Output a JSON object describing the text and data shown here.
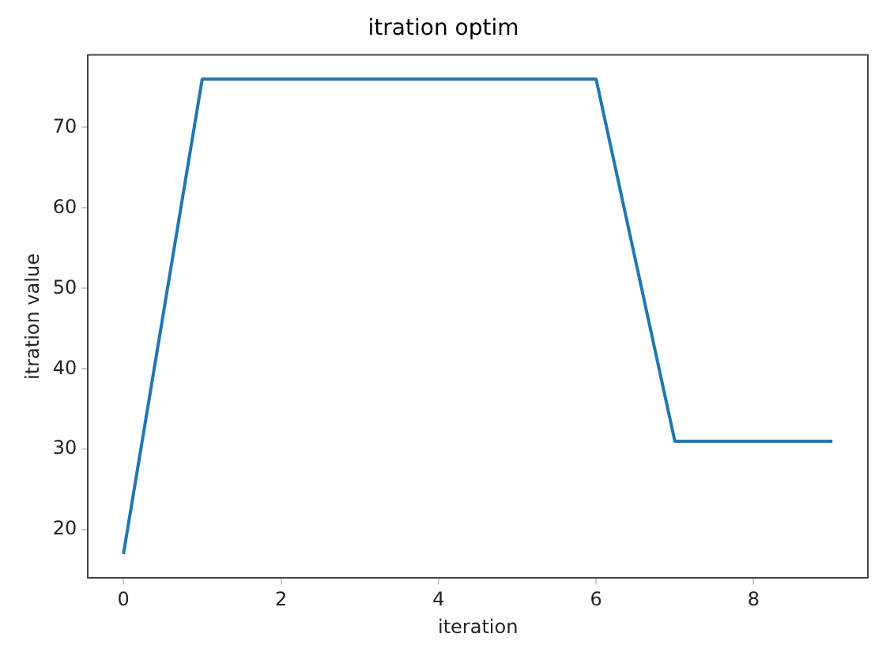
{
  "chart_data": {
    "type": "line",
    "title": "itration optim",
    "xlabel": "iteration",
    "ylabel": "itration value",
    "x": [
      0,
      1,
      2,
      3,
      4,
      5,
      6,
      7,
      8,
      9
    ],
    "series": [
      {
        "color": "#1f77b4",
        "values": [
          17,
          76,
          76,
          76,
          76,
          76,
          76,
          31,
          31,
          31
        ]
      }
    ],
    "xlim": [
      -0.45,
      9.45
    ],
    "xticks": [
      0,
      2,
      4,
      6,
      8
    ],
    "ylim": [
      14,
      79
    ],
    "yticks": [
      20,
      30,
      40,
      50,
      60,
      70
    ],
    "grid": false,
    "legend": false,
    "marker": "none",
    "line_style": "solid"
  }
}
